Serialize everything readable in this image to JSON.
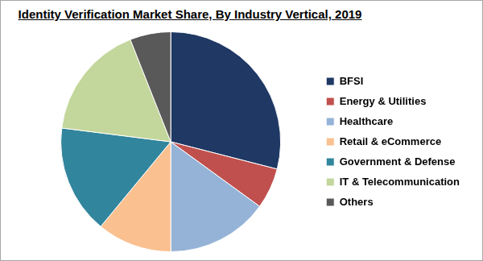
{
  "chart_data": {
    "type": "pie",
    "title": "Identity Verification Market Share, By Industry Vertical, 2019",
    "categories": [
      "BFSI",
      "Energy & Utilities",
      "Healthcare",
      "Retail & eCommerce",
      "Government & Defense",
      "IT & Telecommunication",
      "Others"
    ],
    "values": [
      29,
      6,
      15,
      11,
      16,
      17,
      6
    ],
    "colors": [
      "#1f3864",
      "#c0504d",
      "#95b3d7",
      "#fac090",
      "#31859c",
      "#c3d69b",
      "#595959"
    ],
    "legend": "right",
    "data_labels": false
  }
}
